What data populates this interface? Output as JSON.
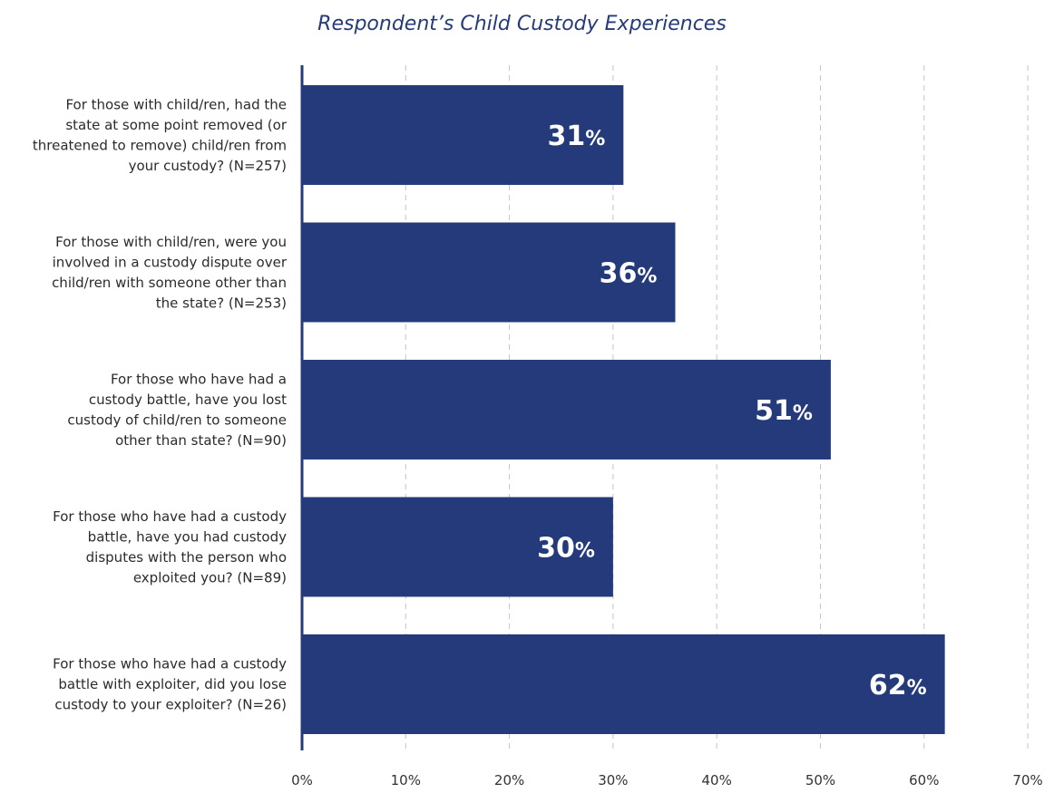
{
  "chart_data": {
    "type": "bar",
    "orientation": "horizontal",
    "title": "Respondent’s Child Custody Experiences",
    "categories": [
      [
        "For those with child/ren, had the",
        "state at some point removed (or",
        "threatened to remove) child/ren from",
        "your custody? (N=257)"
      ],
      [
        "For those with child/ren, were you",
        "involved in a custody dispute over",
        "child/ren with someone other than",
        "the state? (N=253)"
      ],
      [
        "For those who have had a",
        "custody battle, have you lost",
        "custody of child/ren to someone",
        "other than state? (N=90)"
      ],
      [
        "For those who have had a custody",
        "battle, have you had custody",
        "disputes with the person who",
        "exploited you? (N=89)"
      ],
      [
        "For those who have had a custody",
        "battle with exploiter, did you lose",
        "custody to your exploiter? (N=26)"
      ]
    ],
    "values": [
      31,
      36,
      51,
      30,
      62
    ],
    "value_labels": [
      "31",
      "36",
      "51",
      "30",
      "62"
    ],
    "value_unit": "%",
    "xlim": [
      0,
      70
    ],
    "xticks": [
      0,
      10,
      20,
      30,
      40,
      50,
      60,
      70
    ],
    "xtick_labels": [
      "0%",
      "10%",
      "20%",
      "30%",
      "40%",
      "50%",
      "60%",
      "70%"
    ],
    "grid": "vertical dashed",
    "legend": "none",
    "colors": {
      "bar": "#243a7a",
      "title": "#243a7a",
      "axis": "#243a7a",
      "grid": "#c4c4c4",
      "value_text": "#ffffff"
    }
  }
}
